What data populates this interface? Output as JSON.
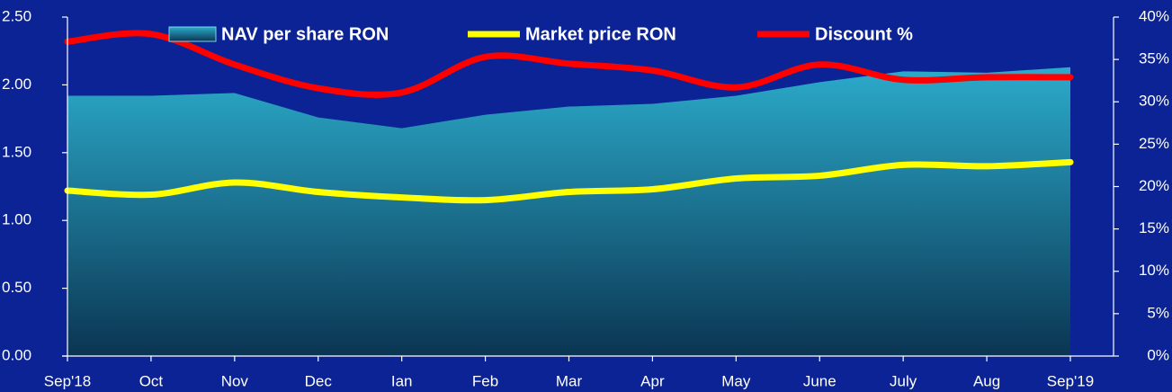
{
  "chart_data": {
    "type": "area_line",
    "categories": [
      "Sep'18",
      "Oct",
      "Nov",
      "Dec",
      "Ian",
      "Feb",
      "Mar",
      "Apr",
      "May",
      "June",
      "July",
      "Aug",
      "Sep'19"
    ],
    "series": [
      {
        "name": "NAV per share RON",
        "type": "area",
        "color": "#2aa6c6",
        "values": [
          1.92,
          1.92,
          1.94,
          1.76,
          1.68,
          1.78,
          1.84,
          1.86,
          1.92,
          2.02,
          2.1,
          2.09,
          2.13
        ]
      },
      {
        "name": "Market price RON",
        "type": "line",
        "color": "#ffff00",
        "values": [
          1.22,
          1.19,
          1.28,
          1.21,
          1.17,
          1.15,
          1.21,
          1.23,
          1.31,
          1.33,
          1.41,
          1.4,
          1.43
        ]
      },
      {
        "name": "Discount %",
        "type": "line",
        "axis": "y2",
        "color": "#ff0000",
        "values": [
          37.1,
          38.0,
          34.4,
          31.6,
          31.1,
          35.3,
          34.5,
          33.7,
          31.7,
          34.4,
          32.6,
          32.9,
          32.9
        ]
      }
    ],
    "ylim": [
      0,
      2.5
    ],
    "yticks": [
      {
        "value": 0,
        "label": "0.00"
      },
      {
        "value": 0.5,
        "label": "0.50"
      },
      {
        "value": 1,
        "label": "1.00"
      },
      {
        "value": 1.5,
        "label": "1.50"
      },
      {
        "value": 2,
        "label": "2.00"
      },
      {
        "value": 2.5,
        "label": "2.50"
      }
    ],
    "y2lim": [
      0,
      40
    ],
    "y2ticks": [
      {
        "value": 0,
        "label": "0%"
      },
      {
        "value": 5,
        "label": "5%"
      },
      {
        "value": 10,
        "label": "10%"
      },
      {
        "value": 15,
        "label": "15%"
      },
      {
        "value": 20,
        "label": "20%"
      },
      {
        "value": 25,
        "label": "25%"
      },
      {
        "value": 30,
        "label": "30%"
      },
      {
        "value": 35,
        "label": "35%"
      },
      {
        "value": 40,
        "label": "40%"
      }
    ],
    "legend": "top"
  }
}
